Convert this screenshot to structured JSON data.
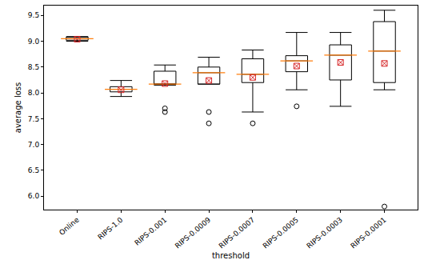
{
  "chart_data": {
    "type": "box",
    "x_label": "threshold",
    "y_label": "average loss",
    "categories": [
      "Online",
      "RIPS-1.0",
      "RIPS-0.001",
      "RIPS-0.0009",
      "RIPS-0.0007",
      "RIPS-0.0005",
      "RIPS-0.0003",
      "RIPS-0.0001"
    ],
    "boxes": [
      {
        "whisker_low": 9.0,
        "q1": 9.02,
        "median": 9.05,
        "q3": 9.08,
        "whisker_high": 9.09,
        "mean": 9.04,
        "outliers": []
      },
      {
        "whisker_low": 7.93,
        "q1": 8.02,
        "median": 8.07,
        "q3": 8.12,
        "whisker_high": 8.24,
        "mean": 8.06,
        "outliers": []
      },
      {
        "whisker_low": 8.15,
        "q1": 8.16,
        "median": 8.17,
        "q3": 8.42,
        "whisker_high": 8.54,
        "mean": 8.18,
        "outliers": [
          7.7,
          7.63
        ]
      },
      {
        "whisker_low": 8.17,
        "q1": 8.17,
        "median": 8.39,
        "q3": 8.5,
        "whisker_high": 8.69,
        "mean": 8.24,
        "outliers": [
          7.63,
          7.41
        ]
      },
      {
        "whisker_low": 7.63,
        "q1": 8.2,
        "median": 8.36,
        "q3": 8.66,
        "whisker_high": 8.83,
        "mean": 8.3,
        "outliers": [
          7.41
        ]
      },
      {
        "whisker_low": 8.06,
        "q1": 8.41,
        "median": 8.62,
        "q3": 8.72,
        "whisker_high": 9.17,
        "mean": 8.52,
        "outliers": [
          7.74
        ]
      },
      {
        "whisker_low": 7.74,
        "q1": 8.25,
        "median": 8.73,
        "q3": 8.93,
        "whisker_high": 9.17,
        "mean": 8.59,
        "outliers": []
      },
      {
        "whisker_low": 8.06,
        "q1": 8.2,
        "median": 8.81,
        "q3": 9.38,
        "whisker_high": 9.6,
        "mean": 8.57,
        "outliers": [
          5.8
        ]
      }
    ],
    "color": "#000000",
    "ylim": [
      5.74,
      9.69
    ],
    "yticks": [
      {
        "value": 6,
        "label": "6.0"
      },
      6.5,
      {
        "value": 7,
        "label": "7.0"
      },
      7.5,
      {
        "value": 8,
        "label": "8.0"
      },
      8.5,
      {
        "value": 9,
        "label": "9.0"
      },
      9.5
    ],
    "grid": false
  }
}
